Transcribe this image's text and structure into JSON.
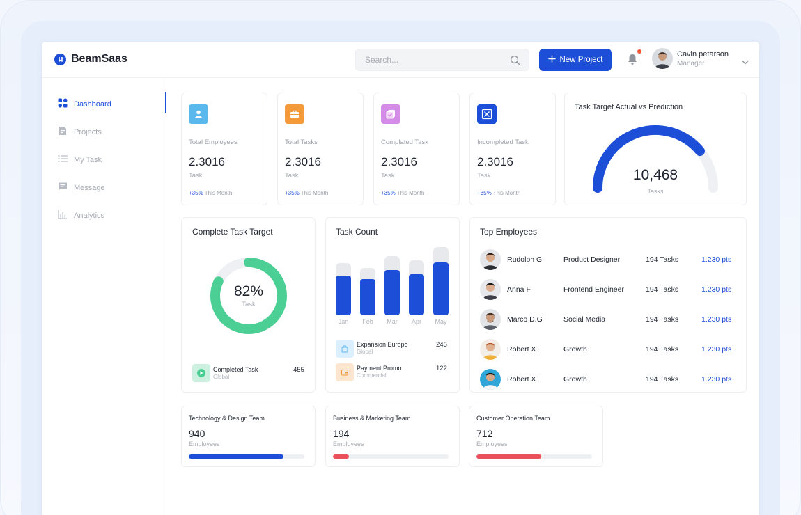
{
  "app": {
    "name": "BeamSaas"
  },
  "search": {
    "placeholder": "Search..."
  },
  "header": {
    "new_project_label": "New Project",
    "user_name": "Cavin petarson",
    "user_role": "Manager"
  },
  "sidebar": {
    "items": [
      {
        "label": "Dashboard",
        "icon": "dashboard-icon",
        "active": true
      },
      {
        "label": "Projects",
        "icon": "document-icon"
      },
      {
        "label": "My Task",
        "icon": "list-icon"
      },
      {
        "label": "Message",
        "icon": "message-icon"
      },
      {
        "label": "Analytics",
        "icon": "analytics-icon"
      }
    ]
  },
  "stats": [
    {
      "label": "Total Employees",
      "value": "2.3016",
      "unit": "Task",
      "change": "+35%",
      "period": "This Month",
      "color": "#5ab8ec"
    },
    {
      "label": "Total Tasks",
      "value": "2.3016",
      "unit": "Task",
      "change": "+35%",
      "period": "This Month",
      "color": "#f39a3a"
    },
    {
      "label": "Complated Task",
      "value": "2.3016",
      "unit": "Task",
      "change": "+35%",
      "period": "This Month",
      "color": "#d58be8"
    },
    {
      "label": "Incompleted Task",
      "value": "2.3016",
      "unit": "Task",
      "change": "+35%",
      "period": "This Month",
      "color": "#1d4ed8"
    }
  ],
  "gauge": {
    "title": "Task Target Actual vs Prediction",
    "value": "10,468",
    "unit": "Tasks",
    "fraction": 0.78
  },
  "donut": {
    "title": "Complete Task Target",
    "value": "82%",
    "unit": "Task",
    "percent": 82,
    "legend_label": "Completed Task",
    "legend_sub": "Global",
    "legend_value": "455"
  },
  "task_count": {
    "title": "Task Count",
    "legend": [
      {
        "label": "Expansion Europo",
        "sub": "Global",
        "value": "245"
      },
      {
        "label": "Payment Promo",
        "sub": "Commercial",
        "value": "122"
      }
    ]
  },
  "chart_data": {
    "type": "bar",
    "categories": [
      "Jan",
      "Feb",
      "Mar",
      "Apr",
      "May"
    ],
    "series": [
      {
        "values": [
          75,
          68,
          85,
          79,
          98
        ]
      },
      {
        "values": [
          57,
          52,
          65,
          59,
          76
        ]
      }
    ],
    "ylim": [
      0,
      100
    ]
  },
  "top_employees": {
    "title": "Top Employees",
    "rows": [
      {
        "name": "Rudolph G",
        "role": "Product Designer",
        "tasks": "194 Tasks",
        "points": "1.230 pts"
      },
      {
        "name": "Anna F",
        "role": "Frontend Engineer",
        "tasks": "194 Tasks",
        "points": "1.230 pts"
      },
      {
        "name": "Marco D.G",
        "role": "Social Media",
        "tasks": "194 Tasks",
        "points": "1.230 pts"
      },
      {
        "name": "Robert X",
        "role": "Growth",
        "tasks": "194 Tasks",
        "points": "1.230 pts"
      },
      {
        "name": "Robert X",
        "role": "Growth",
        "tasks": "194 Tasks",
        "points": "1.230 pts"
      }
    ]
  },
  "teams": [
    {
      "title": "Technology & Design Team",
      "count": "940",
      "unit": "Employees",
      "progress": 0.82,
      "color": "#1d4ed8"
    },
    {
      "title": "Business & Marketing Team",
      "count": "194",
      "unit": "Employees",
      "progress": 0.14,
      "color": "#ea4f5c"
    },
    {
      "title": "Customer Operation Team",
      "count": "712",
      "unit": "Employees",
      "progress": 0.56,
      "color": "#ea4f5c"
    }
  ],
  "colors": {
    "accent": "#1d4ed8",
    "donut": "#4ccf94",
    "track": "#eef0f3"
  }
}
